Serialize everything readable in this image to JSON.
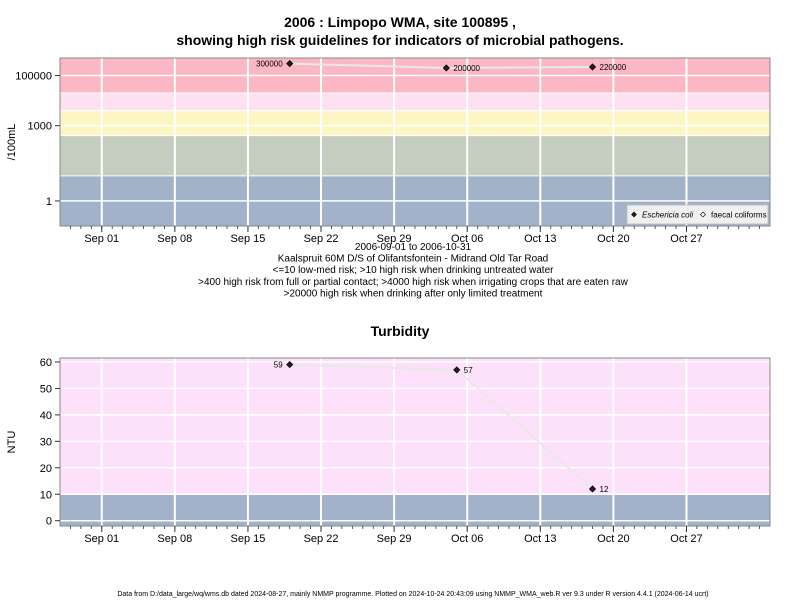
{
  "footer": "Data from D:/data_large/wq/wms.db dated 2024-08-27, mainly NMMP programme. Plotted on 2024-10-24 20:43:09 using NMMP_WMA_web.R ver 9.3 under R version 4.4.1 (2024-06-14 ucrt)",
  "x_tick_labels": [
    "Sep 01",
    "Sep 08",
    "Sep 15",
    "Sep 22",
    "Sep 29",
    "Oct 06",
    "Oct 13",
    "Oct 20",
    "Oct 27"
  ],
  "colors": {
    "risk_very_high": "#fbb7c4",
    "risk_high_irrigation": "#fde1f3",
    "risk_high_contact": "#fdf6c4",
    "risk_high_drinking": "#c4cdc0",
    "risk_low": "#a1b2c9",
    "turbidity_high": "#fde1fb",
    "series_line": "#e8e8e8",
    "marker": "#222222"
  },
  "chart_data": [
    {
      "type": "line",
      "title": "2006 : Limpopo WMA, site 100895 ,",
      "subtitle": "showing high risk guidelines for indicators of microbial pathogens.",
      "ylabel": "/100mL",
      "x_axis": "date",
      "xlim": [
        "2006-08-28",
        "2006-11-04"
      ],
      "y_scale": "log10",
      "ylim": [
        0.1,
        500000
      ],
      "y_tick_labels": [
        "1",
        "1000",
        "100000"
      ],
      "y_ticks": [
        1,
        1000,
        100000
      ],
      "grid": true,
      "x_caption": [
        "2006-09-01 to 2006-10-31",
        "Kaalspruit 60M D/S of Olifantsfontein - Midrand Old Tar Road",
        "<=10 low-med risk; >10 high risk when drinking untreated water",
        ">400 high risk from full or partial contact; >4000 high risk when irrigating crops that are eaten raw",
        ">20000 high risk when drinking after only limited treatment"
      ],
      "bands": [
        {
          "from": 0.1,
          "to": 10,
          "color": "#a1b2c9"
        },
        {
          "from": 10,
          "to": 400,
          "color": "#c4cdc0"
        },
        {
          "from": 400,
          "to": 4000,
          "color": "#fdf6c4"
        },
        {
          "from": 4000,
          "to": 20000,
          "color": "#fde1f3"
        },
        {
          "from": 20000,
          "to": 500000,
          "color": "#fbb7c4"
        }
      ],
      "series": [
        {
          "name": "Eschericia coli",
          "marker": "filled-diamond",
          "points": [
            {
              "x": "2006-09-19",
              "y": 300000,
              "label": "300000"
            },
            {
              "x": "2006-10-04",
              "y": 200000,
              "label": "200000"
            },
            {
              "x": "2006-10-18",
              "y": 220000,
              "label": "220000"
            }
          ]
        },
        {
          "name": "faecal coliforms",
          "marker": "open-diamond",
          "points": []
        }
      ],
      "legend_position": "bottom-right"
    },
    {
      "type": "line",
      "title": "Turbidity",
      "ylabel": "NTU",
      "x_axis": "date",
      "xlim": [
        "2006-08-28",
        "2006-11-04"
      ],
      "ylim": [
        -2,
        61.5
      ],
      "y_tick_labels": [
        "0",
        "10",
        "20",
        "30",
        "40",
        "50",
        "60"
      ],
      "y_ticks": [
        0,
        10,
        20,
        30,
        40,
        50,
        60
      ],
      "grid": true,
      "bands": [
        {
          "from": -2,
          "to": 10,
          "color": "#a1b2c9"
        },
        {
          "from": 10,
          "to": 61.5,
          "color": "#fde1fb"
        }
      ],
      "series": [
        {
          "name": "Turbidity",
          "marker": "filled-diamond",
          "points": [
            {
              "x": "2006-09-19",
              "y": 59,
              "label": "59"
            },
            {
              "x": "2006-10-05",
              "y": 57,
              "label": "57"
            },
            {
              "x": "2006-10-18",
              "y": 12,
              "label": "12"
            }
          ]
        }
      ]
    }
  ]
}
